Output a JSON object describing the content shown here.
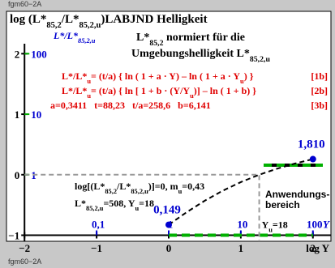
{
  "chart_data": {
    "type": "line",
    "corner_label": "fgm60−2A",
    "title": [
      "log (L*",
      "85,2",
      "/L*",
      "85,2,u",
      ")LABJND Helligkeit"
    ],
    "subtitle": [
      [
        "L*",
        "85,2",
        " normiert für die"
      ],
      [
        "Umgebungshelligkeit L*",
        "85,2,u"
      ]
    ],
    "y2_label": [
      "L*/L*",
      "85,2,u"
    ],
    "formulas": [
      {
        "text": [
          "L*/L*",
          "u",
          "= (t/a) { ln ( 1 + a · Y) – ln ( 1 + a · Y",
          "u",
          ") }"
        ],
        "tag": "[1b]"
      },
      {
        "text": [
          "L*/L*",
          "u",
          "= (t/a) { ln [ 1 + b · (Y/Y",
          "u",
          ")] – ln ( 1 + b) }"
        ],
        "tag": "[2b]"
      },
      {
        "text": [
          "a=0,3411   t=88,23   t/a=258,6   b=6,141"
        ],
        "tag": "[3b]"
      }
    ],
    "notes": [
      [
        "log[(L*",
        "85,2",
        "/L*",
        "85,2,u",
        ")]=0, m",
        "u",
        "=0,43"
      ],
      [
        "L*",
        "85,2,u",
        "=508, Y",
        "u",
        "=18"
      ]
    ],
    "reference": {
      "label": [
        "Y",
        "u",
        "=18"
      ],
      "x": 18,
      "value": 1
    },
    "application_range": {
      "label": [
        "Anwendungs-",
        "bereich"
      ],
      "x": [
        1,
        100
      ],
      "color": "#00b000"
    },
    "xlabel": "log Y",
    "x2label": "Y",
    "xlim": [
      -2.25,
      2.25
    ],
    "xticks": [
      {
        "value": -2,
        "label": "−2"
      },
      {
        "value": -1,
        "label": "−1"
      },
      0,
      1,
      2
    ],
    "ylim": [
      -1.1,
      2.7
    ],
    "yticks": [
      {
        "value": -1,
        "label": "−1"
      },
      0,
      1,
      2
    ],
    "x2lim": [
      0.005623,
      177.83
    ],
    "x2ticks": [
      {
        "value": 0.1,
        "label": "0,1"
      },
      1,
      10,
      100
    ],
    "y2lim": [
      0.07943,
      501.19
    ],
    "y2ticks": [
      1,
      10,
      100
    ],
    "log_scale_2": true,
    "series": [
      {
        "name": "L*/L*u",
        "color": "#000000",
        "axis": "y2",
        "x": [
          1,
          1.778,
          3.162,
          5.623,
          10,
          17.78,
          31.62,
          56.23,
          100
        ],
        "values": [
          0.149,
          0.2406,
          0.372,
          0.5445,
          0.7549,
          0.9946,
          1.2552,
          1.529,
          1.81
        ]
      }
    ],
    "points": {
      "color": "#0000d0",
      "axis": "y2",
      "x": [
        1,
        100
      ],
      "values": [
        0.149,
        1.81
      ],
      "value_labels": [
        "0,149",
        "1,810"
      ]
    }
  }
}
